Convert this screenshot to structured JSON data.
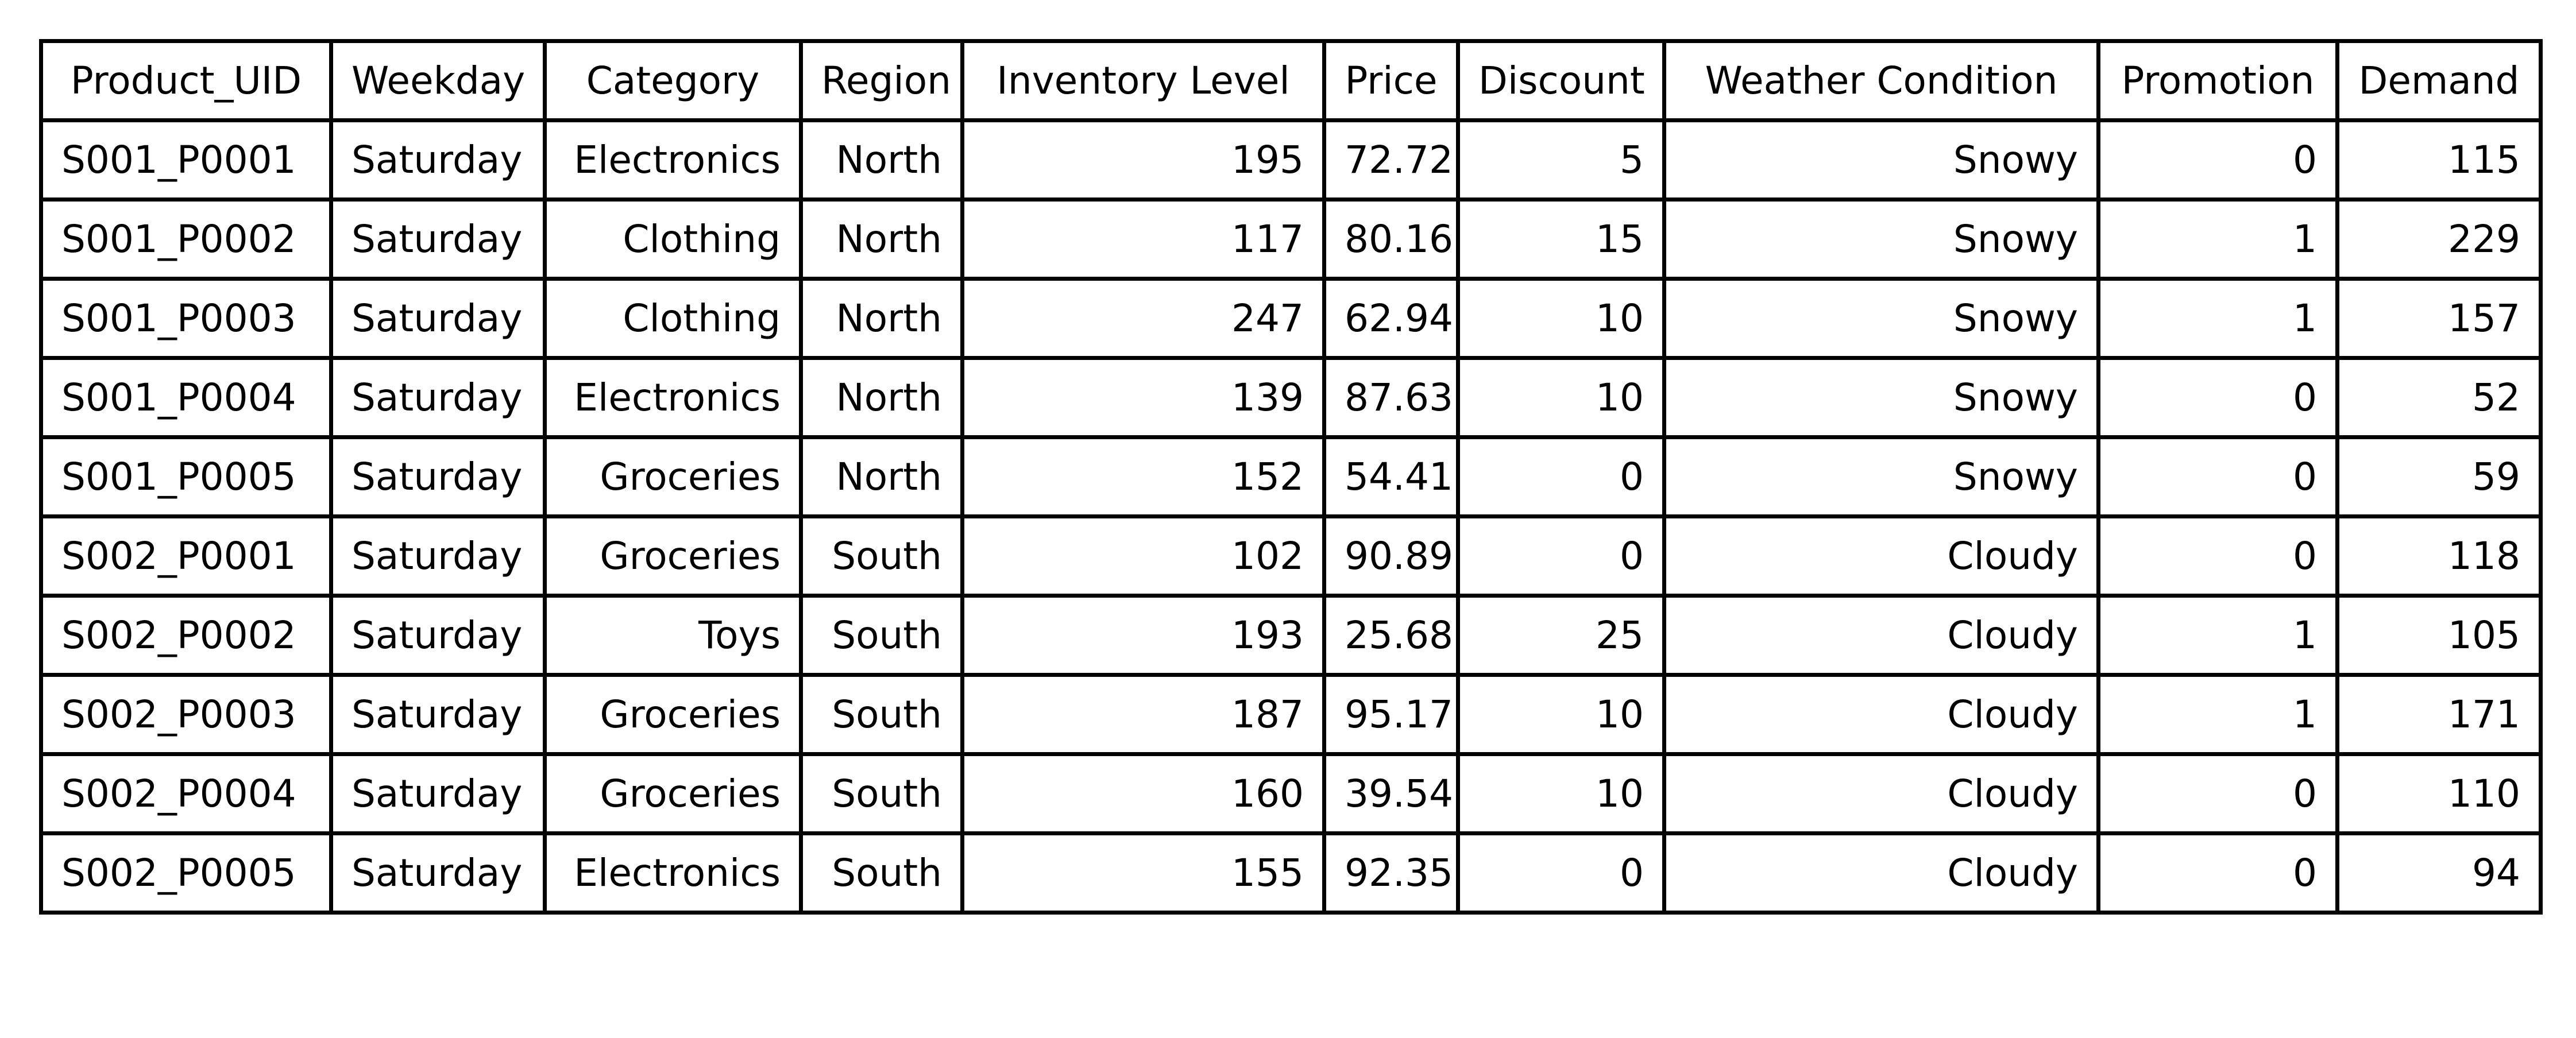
{
  "chart_data": {
    "type": "table",
    "columns": [
      "Product_UID",
      "Weekday",
      "Category",
      "Region",
      "Inventory Level",
      "Price",
      "Discount",
      "Weather Condition",
      "Promotion",
      "Demand"
    ],
    "rows": [
      [
        "S001_P0001",
        "Saturday",
        "Electronics",
        "North",
        "195",
        "72.72",
        "5",
        "Snowy",
        "0",
        "115"
      ],
      [
        "S001_P0002",
        "Saturday",
        "Clothing",
        "North",
        "117",
        "80.16",
        "15",
        "Snowy",
        "1",
        "229"
      ],
      [
        "S001_P0003",
        "Saturday",
        "Clothing",
        "North",
        "247",
        "62.94",
        "10",
        "Snowy",
        "1",
        "157"
      ],
      [
        "S001_P0004",
        "Saturday",
        "Electronics",
        "North",
        "139",
        "87.63",
        "10",
        "Snowy",
        "0",
        "52"
      ],
      [
        "S001_P0005",
        "Saturday",
        "Groceries",
        "North",
        "152",
        "54.41",
        "0",
        "Snowy",
        "0",
        "59"
      ],
      [
        "S002_P0001",
        "Saturday",
        "Groceries",
        "South",
        "102",
        "90.89",
        "0",
        "Cloudy",
        "0",
        "118"
      ],
      [
        "S002_P0002",
        "Saturday",
        "Toys",
        "South",
        "193",
        "25.68",
        "25",
        "Cloudy",
        "1",
        "105"
      ],
      [
        "S002_P0003",
        "Saturday",
        "Groceries",
        "South",
        "187",
        "95.17",
        "10",
        "Cloudy",
        "1",
        "171"
      ],
      [
        "S002_P0004",
        "Saturday",
        "Groceries",
        "South",
        "160",
        "39.54",
        "10",
        "Cloudy",
        "0",
        "110"
      ],
      [
        "S002_P0005",
        "Saturday",
        "Electronics",
        "South",
        "155",
        "92.35",
        "0",
        "Cloudy",
        "0",
        "94"
      ]
    ],
    "column_align": [
      "left",
      "left",
      "right",
      "right",
      "right",
      "center",
      "right",
      "right",
      "right",
      "right"
    ]
  }
}
